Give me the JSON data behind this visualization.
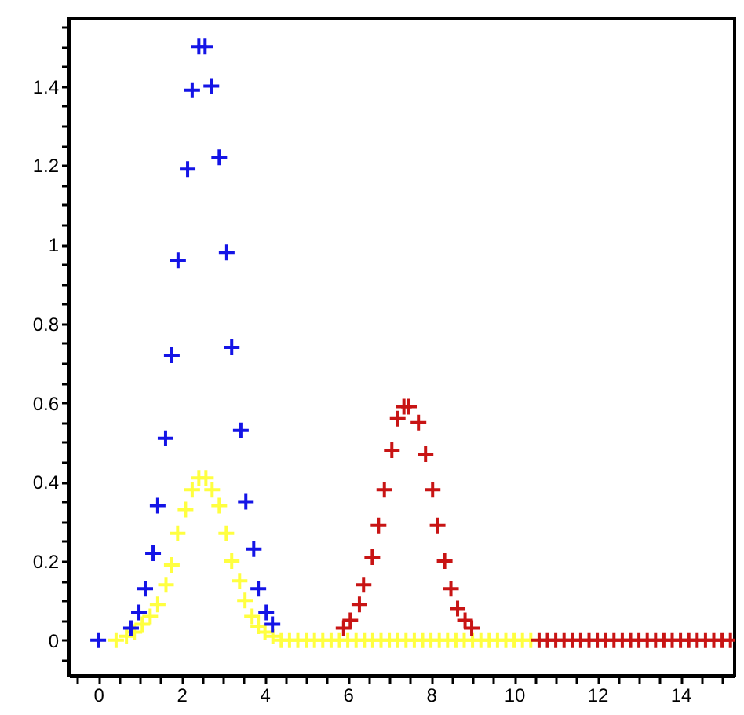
{
  "chart_data": {
    "type": "scatter",
    "marker": "cross",
    "grid": false,
    "xlim": [
      -0.7,
      15.3
    ],
    "ylim": [
      -0.09,
      1.57
    ],
    "xticks": [
      {
        "value": -0.5,
        "label": null
      },
      0,
      {
        "value": 0.5,
        "label": null
      },
      {
        "value": 1,
        "label": null
      },
      {
        "value": 1.5,
        "label": null
      },
      2,
      {
        "value": 2.5,
        "label": null
      },
      {
        "value": 3,
        "label": null
      },
      {
        "value": 3.5,
        "label": null
      },
      4,
      {
        "value": 4.5,
        "label": null
      },
      {
        "value": 5,
        "label": null
      },
      {
        "value": 5.5,
        "label": null
      },
      6,
      {
        "value": 6.5,
        "label": null
      },
      {
        "value": 7,
        "label": null
      },
      {
        "value": 7.5,
        "label": null
      },
      8,
      {
        "value": 8.5,
        "label": null
      },
      {
        "value": 9,
        "label": null
      },
      {
        "value": 9.5,
        "label": null
      },
      10,
      {
        "value": 10.5,
        "label": null
      },
      {
        "value": 11,
        "label": null
      },
      {
        "value": 11.5,
        "label": null
      },
      12,
      {
        "value": 12.5,
        "label": null
      },
      {
        "value": 13,
        "label": null
      },
      {
        "value": 13.5,
        "label": null
      },
      14,
      {
        "value": 14.5,
        "label": null
      },
      {
        "value": 15,
        "label": null
      }
    ],
    "yticks": [
      {
        "value": -0.05,
        "label": null
      },
      0,
      {
        "value": 0.05,
        "label": null
      },
      {
        "value": 0.1,
        "label": null
      },
      {
        "value": 0.15,
        "label": null
      },
      0.2,
      {
        "value": 0.25,
        "label": null
      },
      {
        "value": 0.3,
        "label": null
      },
      {
        "value": 0.35,
        "label": null
      },
      0.4,
      {
        "value": 0.45,
        "label": null
      },
      {
        "value": 0.5,
        "label": null
      },
      {
        "value": 0.55,
        "label": null
      },
      0.6,
      {
        "value": 0.65,
        "label": null
      },
      {
        "value": 0.7,
        "label": null
      },
      {
        "value": 0.75,
        "label": null
      },
      0.8,
      {
        "value": 0.85,
        "label": null
      },
      {
        "value": 0.9,
        "label": null
      },
      {
        "value": 0.95,
        "label": null
      },
      1,
      {
        "value": 1.05,
        "label": null
      },
      {
        "value": 1.1,
        "label": null
      },
      {
        "value": 1.15,
        "label": null
      },
      1.2,
      {
        "value": 1.25,
        "label": null
      },
      {
        "value": 1.3,
        "label": null
      },
      {
        "value": 1.35,
        "label": null
      },
      1.4,
      {
        "value": 1.45,
        "label": null
      },
      {
        "value": 1.5,
        "label": null
      },
      {
        "value": 1.55,
        "label": null
      }
    ],
    "series": [
      {
        "color": "#ffff40",
        "x": [
          0.43,
          0.68,
          0.87,
          1.06,
          1.25,
          1.43,
          1.63,
          1.77,
          1.91,
          2.1,
          2.26,
          2.42,
          2.59,
          2.74,
          2.91,
          3.08,
          3.21,
          3.4,
          3.53,
          3.7,
          3.85,
          4.01,
          4.2,
          4.4,
          4.6,
          4.8,
          5.0,
          5.2,
          5.4,
          5.6,
          5.8,
          6.0,
          6.2,
          6.4,
          6.6,
          6.8,
          7.0,
          7.2,
          7.4,
          7.6,
          7.8,
          8.0,
          8.2,
          8.4,
          8.6,
          8.8,
          9.0,
          9.2,
          9.4,
          9.6,
          9.8,
          10.0,
          10.2,
          10.4
        ],
        "values": [
          0,
          0.01,
          0.02,
          0.04,
          0.06,
          0.09,
          0.14,
          0.19,
          0.27,
          0.33,
          0.38,
          0.41,
          0.41,
          0.38,
          0.34,
          0.27,
          0.2,
          0.15,
          0.1,
          0.06,
          0.035,
          0.02,
          0.01,
          0,
          0,
          0,
          0,
          0,
          0,
          0,
          0,
          0,
          0,
          0,
          0,
          0,
          0,
          0,
          0,
          0,
          0,
          0,
          0,
          0,
          0,
          0,
          0,
          0,
          0,
          0,
          0,
          0,
          0,
          0
        ]
      },
      {
        "color": "#1414e6",
        "x": [
          0,
          0.79,
          0.98,
          1.13,
          1.32,
          1.43,
          1.62,
          1.77,
          1.92,
          2.15,
          2.26,
          2.42,
          2.57,
          2.72,
          2.91,
          3.09,
          3.21,
          3.43,
          3.55,
          3.74,
          3.85,
          4.04,
          4.19
        ],
        "values": [
          0,
          0.03,
          0.07,
          0.13,
          0.22,
          0.34,
          0.51,
          0.72,
          0.96,
          1.19,
          1.39,
          1.5,
          1.5,
          1.4,
          1.22,
          0.98,
          0.74,
          0.53,
          0.35,
          0.23,
          0.13,
          0.07,
          0.04
        ]
      },
      {
        "color": "#c81414",
        "x": [
          5.9,
          6.06,
          6.28,
          6.38,
          6.59,
          6.74,
          6.88,
          7.06,
          7.2,
          7.35,
          7.47,
          7.7,
          7.87,
          8.04,
          8.16,
          8.33,
          8.48,
          8.64,
          8.82,
          8.98,
          10.6,
          10.8,
          11.0,
          11.2,
          11.4,
          11.6,
          11.8,
          12.0,
          12.2,
          12.4,
          12.6,
          12.8,
          13.0,
          13.2,
          13.4,
          13.6,
          13.8,
          14.0,
          14.2,
          14.4,
          14.6,
          14.8,
          15.0,
          15.2
        ],
        "values": [
          0.03,
          0.05,
          0.09,
          0.14,
          0.21,
          0.29,
          0.38,
          0.48,
          0.56,
          0.59,
          0.59,
          0.55,
          0.47,
          0.38,
          0.29,
          0.2,
          0.13,
          0.08,
          0.05,
          0.03,
          0,
          0,
          0,
          0,
          0,
          0,
          0,
          0,
          0,
          0,
          0,
          0,
          0,
          0,
          0,
          0,
          0,
          0,
          0,
          0,
          0,
          0,
          0,
          0
        ]
      }
    ]
  }
}
